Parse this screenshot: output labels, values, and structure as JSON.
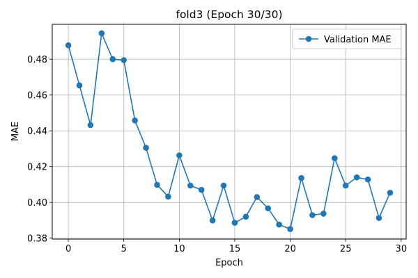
{
  "chart_data": {
    "type": "line",
    "title": "fold3 (Epoch 30/30)",
    "xlabel": "Epoch",
    "ylabel": "MAE",
    "xlim": [
      -1.45,
      30.45
    ],
    "ylim": [
      0.3795,
      0.4995
    ],
    "xticks": [
      0,
      5,
      10,
      15,
      20,
      25,
      30
    ],
    "yticks": [
      0.38,
      0.4,
      0.42,
      0.44,
      0.46,
      0.48
    ],
    "ytick_labels": [
      "0.38",
      "0.40",
      "0.42",
      "0.44",
      "0.46",
      "0.48"
    ],
    "grid": true,
    "legend_position": "upper right",
    "series": [
      {
        "name": "Validation MAE",
        "color": "#1f77b4",
        "marker": "circle",
        "x": [
          0,
          1,
          2,
          3,
          4,
          5,
          6,
          7,
          8,
          9,
          10,
          11,
          12,
          13,
          14,
          15,
          16,
          17,
          18,
          19,
          20,
          21,
          22,
          23,
          24,
          25,
          26,
          27,
          28,
          29
        ],
        "y": [
          0.4878,
          0.4654,
          0.4432,
          0.4945,
          0.48,
          0.4795,
          0.4458,
          0.4305,
          0.4098,
          0.4032,
          0.4263,
          0.4094,
          0.407,
          0.3899,
          0.4094,
          0.3886,
          0.392,
          0.403,
          0.3967,
          0.3876,
          0.3851,
          0.4136,
          0.3929,
          0.3937,
          0.4247,
          0.4094,
          0.414,
          0.4128,
          0.3913,
          0.4054
        ]
      }
    ]
  }
}
